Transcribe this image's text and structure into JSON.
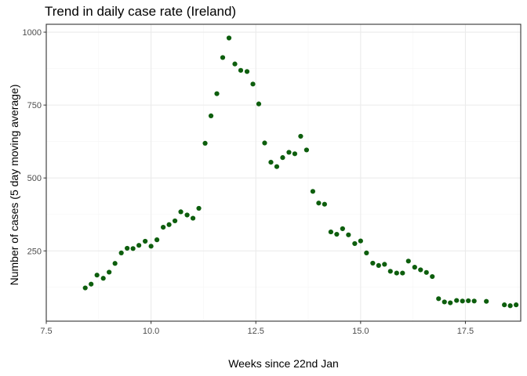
{
  "colors": {
    "point": "#0d5e0d",
    "grid_major": "#ebebeb",
    "grid_minor": "#f5f5f5",
    "panel_border": "#333333",
    "tick_label": "#4d4d4d"
  },
  "chart_data": {
    "type": "scatter",
    "title": "Trend in daily case rate (Ireland)",
    "xlabel": "Weeks since 22nd Jan",
    "ylabel": "Number of cases (5 day moving average)",
    "xlim": [
      7.5,
      18.82
    ],
    "ylim": [
      9,
      1027
    ],
    "x_ticks": [
      7.5,
      10.0,
      12.5,
      15.0,
      17.5
    ],
    "x_tick_labels": [
      "7.5",
      "10.0",
      "12.5",
      "15.0",
      "17.5"
    ],
    "y_ticks": [
      250,
      500,
      750,
      1000
    ],
    "y_tick_labels": [
      "250",
      "500",
      "750",
      "1000"
    ],
    "grid": true,
    "legend": "none",
    "series": [
      {
        "points": [
          [
            8.43,
            123
          ],
          [
            8.57,
            136
          ],
          [
            8.71,
            167
          ],
          [
            8.86,
            156
          ],
          [
            9.0,
            177
          ],
          [
            9.14,
            207
          ],
          [
            9.29,
            243
          ],
          [
            9.43,
            259
          ],
          [
            9.57,
            258
          ],
          [
            9.71,
            269
          ],
          [
            9.86,
            283
          ],
          [
            10.0,
            266
          ],
          [
            10.14,
            288
          ],
          [
            10.29,
            331
          ],
          [
            10.43,
            340
          ],
          [
            10.57,
            353
          ],
          [
            10.71,
            384
          ],
          [
            10.86,
            373
          ],
          [
            11.0,
            362
          ],
          [
            11.14,
            396
          ],
          [
            11.29,
            619
          ],
          [
            11.43,
            713
          ],
          [
            11.57,
            789
          ],
          [
            11.71,
            913
          ],
          [
            11.86,
            980
          ],
          [
            12.0,
            891
          ],
          [
            12.14,
            869
          ],
          [
            12.29,
            865
          ],
          [
            12.43,
            822
          ],
          [
            12.57,
            754
          ],
          [
            12.71,
            620
          ],
          [
            12.86,
            554
          ],
          [
            13.0,
            539
          ],
          [
            13.14,
            570
          ],
          [
            13.29,
            588
          ],
          [
            13.43,
            583
          ],
          [
            13.57,
            643
          ],
          [
            13.71,
            596
          ],
          [
            13.86,
            454
          ],
          [
            14.0,
            414
          ],
          [
            14.14,
            410
          ],
          [
            14.29,
            315
          ],
          [
            14.43,
            307
          ],
          [
            14.57,
            326
          ],
          [
            14.71,
            305
          ],
          [
            14.86,
            275
          ],
          [
            15.0,
            284
          ],
          [
            15.14,
            243
          ],
          [
            15.29,
            208
          ],
          [
            15.43,
            200
          ],
          [
            15.57,
            204
          ],
          [
            15.71,
            180
          ],
          [
            15.86,
            174
          ],
          [
            16.0,
            174
          ],
          [
            16.14,
            215
          ],
          [
            16.29,
            194
          ],
          [
            16.43,
            185
          ],
          [
            16.57,
            176
          ],
          [
            16.71,
            162
          ],
          [
            16.86,
            86
          ],
          [
            17.0,
            75
          ],
          [
            17.14,
            72
          ],
          [
            17.29,
            80
          ],
          [
            17.43,
            78
          ],
          [
            17.57,
            79
          ],
          [
            17.71,
            78
          ],
          [
            18.0,
            77
          ],
          [
            18.43,
            65
          ],
          [
            18.57,
            62
          ],
          [
            18.71,
            65
          ]
        ]
      }
    ]
  }
}
